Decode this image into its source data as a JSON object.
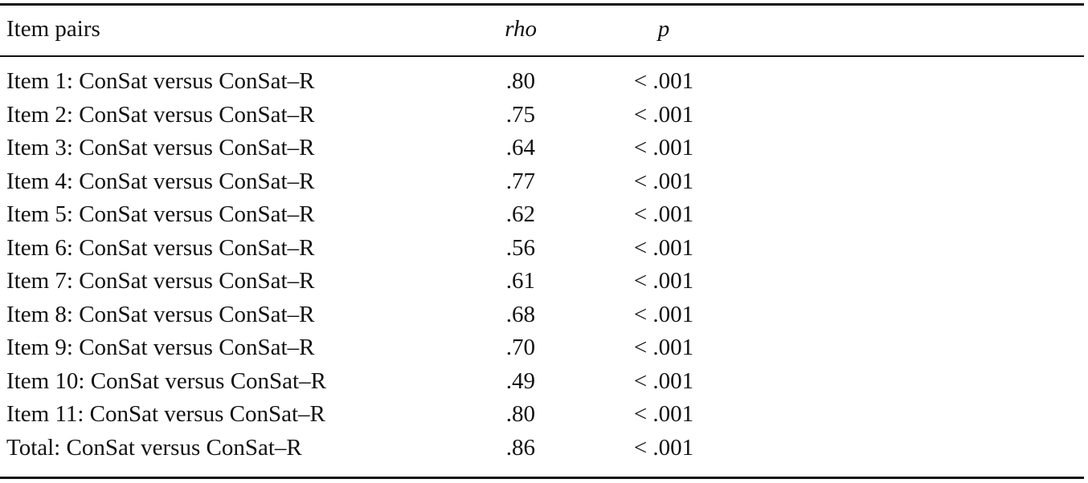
{
  "table": {
    "headers": [
      "Item pairs",
      "rho",
      "p"
    ],
    "rows": [
      [
        "Item 1: ConSat versus ConSat–R",
        ".80",
        "< .001"
      ],
      [
        "Item 2: ConSat versus ConSat–R",
        ".75",
        "< .001"
      ],
      [
        "Item 3: ConSat versus ConSat–R",
        ".64",
        "< .001"
      ],
      [
        "Item 4: ConSat versus ConSat–R",
        ".77",
        "< .001"
      ],
      [
        "Item 5: ConSat versus ConSat–R",
        ".62",
        "< .001"
      ],
      [
        "Item 6: ConSat versus ConSat–R",
        ".56",
        "< .001"
      ],
      [
        "Item 7: ConSat versus ConSat–R",
        ".61",
        "< .001"
      ],
      [
        "Item 8: ConSat versus ConSat–R",
        ".68",
        "< .001"
      ],
      [
        "Item 9: ConSat versus ConSat–R",
        ".70",
        "< .001"
      ],
      [
        "Item 10: ConSat versus ConSat–R",
        ".49",
        "< .001"
      ],
      [
        "Item 11: ConSat versus ConSat–R",
        ".80",
        "< .001"
      ],
      [
        "Total: ConSat versus ConSat–R",
        ".86",
        "< .001"
      ]
    ]
  }
}
